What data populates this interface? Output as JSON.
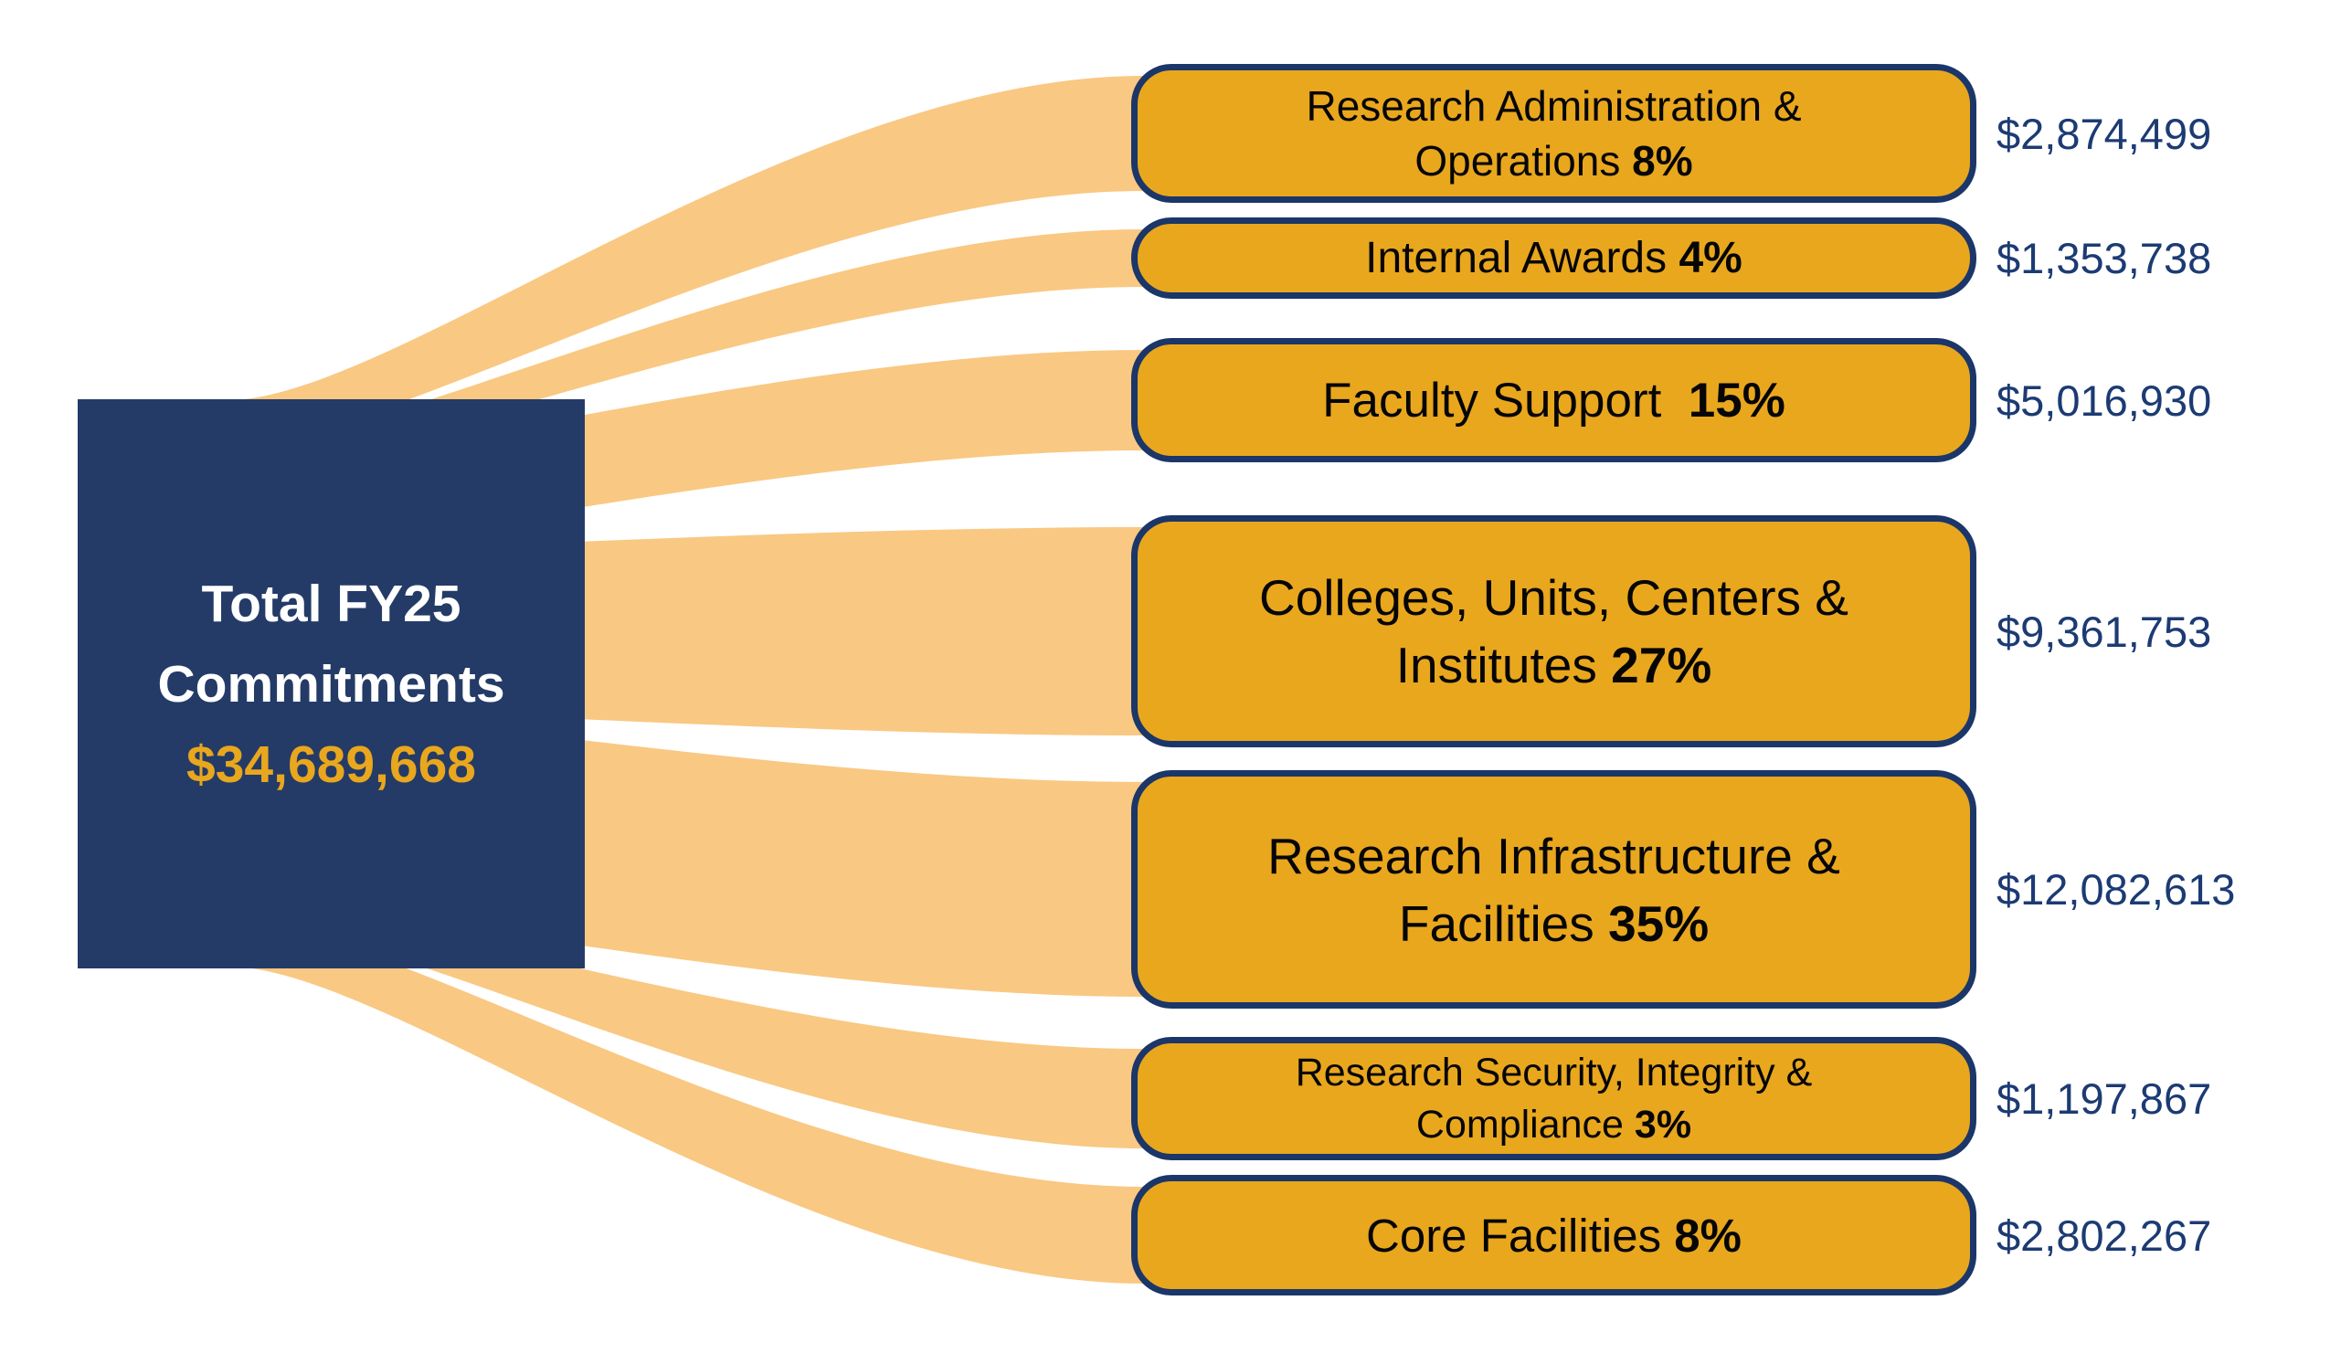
{
  "colors": {
    "navy_box": "#243B67",
    "gold": "#E9A71E",
    "ribbon": "#F9C882",
    "box_border": "#1B3668",
    "amount_text": "#1C3B73",
    "total_text": "#E9A71E",
    "label_text": "#060606",
    "source_title_text": "#FFFFFF"
  },
  "chart_data": {
    "type": "sankey",
    "legend": "none",
    "source_node": {
      "label": "Total FY25 Commitments",
      "label_line1": "Total FY25",
      "label_line2": "Commitments",
      "total_label": "$34,689,668",
      "total_value": 34689668
    },
    "links": [
      {
        "name": "Research Administration & Operations",
        "label_line1": "Research Administration &",
        "label_line2": "Operations",
        "pct": 8,
        "pct_label": "8%",
        "value": 2874499,
        "amount_label": "$2,874,499"
      },
      {
        "name": "Internal Awards",
        "label_line1": "Internal Awards",
        "pct": 4,
        "pct_label": "4%",
        "value": 1353738,
        "amount_label": "$1,353,738"
      },
      {
        "name": "Faculty Support",
        "label_line1": "Faculty Support",
        "pct": 15,
        "pct_label": "15%",
        "value": 5016930,
        "amount_label": "$5,016,930"
      },
      {
        "name": "Colleges, Units, Centers & Institutes",
        "label_line1": "Colleges, Units, Centers &",
        "label_line2": "Institutes",
        "pct": 27,
        "pct_label": "27%",
        "value": 9361753,
        "amount_label": "$9,361,753"
      },
      {
        "name": "Research Infrastructure & Facilities",
        "label_line1": "Research Infrastructure &",
        "label_line2": "Facilities",
        "pct": 35,
        "pct_label": "35%",
        "value": 12082613,
        "amount_label": "$12,082,613"
      },
      {
        "name": "Research Security, Integrity & Compliance",
        "label_line1": "Research Security, Integrity &",
        "label_line2": "Compliance",
        "pct": 3,
        "pct_label": "3%",
        "value": 1197867,
        "amount_label": "$1,197,867"
      },
      {
        "name": "Core Facilities",
        "label_line1": "Core Facilities",
        "pct": 8,
        "pct_label": "8%",
        "value": 2802267,
        "amount_label": "$2,802,267"
      }
    ]
  }
}
